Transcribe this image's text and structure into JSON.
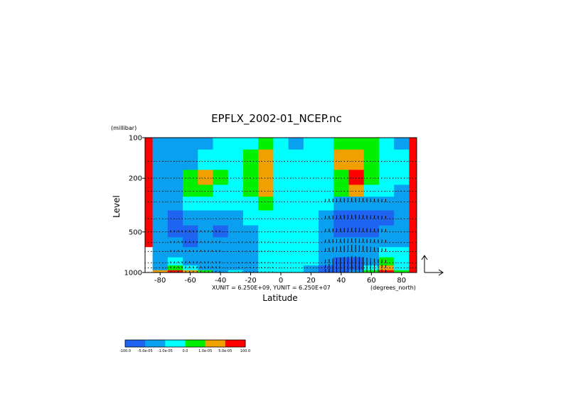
{
  "chart_data": {
    "type": "heatmap",
    "title": "EPFLX_2002-01_NCEP.nc",
    "xlabel": "Latitude",
    "ylabel": "Level",
    "y_unit_label": "(millibar)",
    "x_unit_label": "(degrees_north)",
    "vector_units": "XUNIT = 6.250E+09, YUNIT = 6.250E+07",
    "x_ticks": [
      {
        "value": -80,
        "label": "-80"
      },
      {
        "value": -60,
        "label": "-60"
      },
      {
        "value": -40,
        "label": "-40"
      },
      {
        "value": -20,
        "label": "-20"
      },
      {
        "value": 0,
        "label": "0"
      },
      {
        "value": 20,
        "label": "20"
      },
      {
        "value": 40,
        "label": "40"
      },
      {
        "value": 60,
        "label": "60"
      },
      {
        "value": 80,
        "label": "80"
      }
    ],
    "y_ticks": [
      {
        "value": 100,
        "label": "100"
      },
      {
        "value": 200,
        "label": "200"
      },
      {
        "value": 500,
        "label": "500"
      },
      {
        "value": 1000,
        "label": "1000"
      }
    ],
    "xlim": [
      -90,
      90
    ],
    "ylim": [
      1000,
      100
    ],
    "y_scale": "log",
    "pressure_levels": [
      1000,
      925,
      850,
      700,
      600,
      500,
      400,
      300,
      250,
      200,
      150,
      100
    ],
    "colorbar": {
      "levels": [
        "-100.0",
        "-5.0e-05",
        "-1.0e-05",
        "0.0",
        "1.0e-05",
        "5.0e-05",
        "100.0"
      ],
      "colors": [
        "#1e64f0",
        "#0aa0f0",
        "#00ffff",
        "#00f000",
        "#f0a000",
        "#ff0000"
      ]
    },
    "grid": true,
    "field_grid": {
      "lat": [
        -90,
        -80,
        -70,
        -60,
        -50,
        -40,
        -30,
        -20,
        -10,
        0,
        10,
        20,
        30,
        40,
        50,
        60,
        70,
        80,
        90
      ],
      "levels": [
        100,
        150,
        200,
        250,
        300,
        400,
        500,
        600,
        700,
        850,
        925,
        1000
      ],
      "classes": [
        [
          5,
          1,
          1,
          1,
          1,
          2,
          2,
          2,
          3,
          2,
          1,
          2,
          2,
          3,
          3,
          3,
          2,
          1,
          5
        ],
        [
          5,
          1,
          1,
          1,
          2,
          2,
          2,
          3,
          4,
          2,
          2,
          2,
          2,
          4,
          4,
          3,
          2,
          2,
          5
        ],
        [
          5,
          1,
          1,
          3,
          4,
          3,
          2,
          3,
          4,
          2,
          2,
          2,
          2,
          3,
          5,
          3,
          2,
          2,
          5
        ],
        [
          5,
          1,
          1,
          3,
          3,
          2,
          2,
          3,
          4,
          2,
          2,
          2,
          2,
          3,
          4,
          2,
          2,
          1,
          5
        ],
        [
          5,
          1,
          1,
          2,
          2,
          2,
          2,
          2,
          3,
          2,
          2,
          2,
          2,
          1,
          1,
          1,
          1,
          1,
          5
        ],
        [
          5,
          1,
          0,
          1,
          1,
          1,
          1,
          2,
          2,
          2,
          2,
          2,
          1,
          0,
          0,
          0,
          0,
          1,
          5
        ],
        [
          5,
          1,
          0,
          0,
          1,
          0,
          1,
          1,
          2,
          2,
          2,
          2,
          1,
          0,
          0,
          0,
          1,
          1,
          5
        ],
        [
          5,
          1,
          1,
          0,
          1,
          1,
          1,
          1,
          2,
          2,
          2,
          2,
          1,
          1,
          1,
          1,
          1,
          1,
          5
        ],
        [
          -1,
          1,
          1,
          1,
          1,
          1,
          1,
          1,
          2,
          2,
          2,
          2,
          1,
          1,
          1,
          1,
          2,
          2,
          5
        ],
        [
          -1,
          1,
          2,
          1,
          1,
          1,
          1,
          1,
          2,
          2,
          2,
          2,
          1,
          0,
          0,
          1,
          3,
          2,
          5
        ],
        [
          -1,
          1,
          3,
          2,
          1,
          1,
          1,
          1,
          2,
          2,
          2,
          1,
          0,
          0,
          0,
          2,
          4,
          2,
          5
        ],
        [
          -1,
          4,
          5,
          4,
          3,
          1,
          2,
          1,
          2,
          2,
          2,
          1,
          0,
          0,
          1,
          3,
          5,
          3,
          5
        ]
      ]
    }
  }
}
